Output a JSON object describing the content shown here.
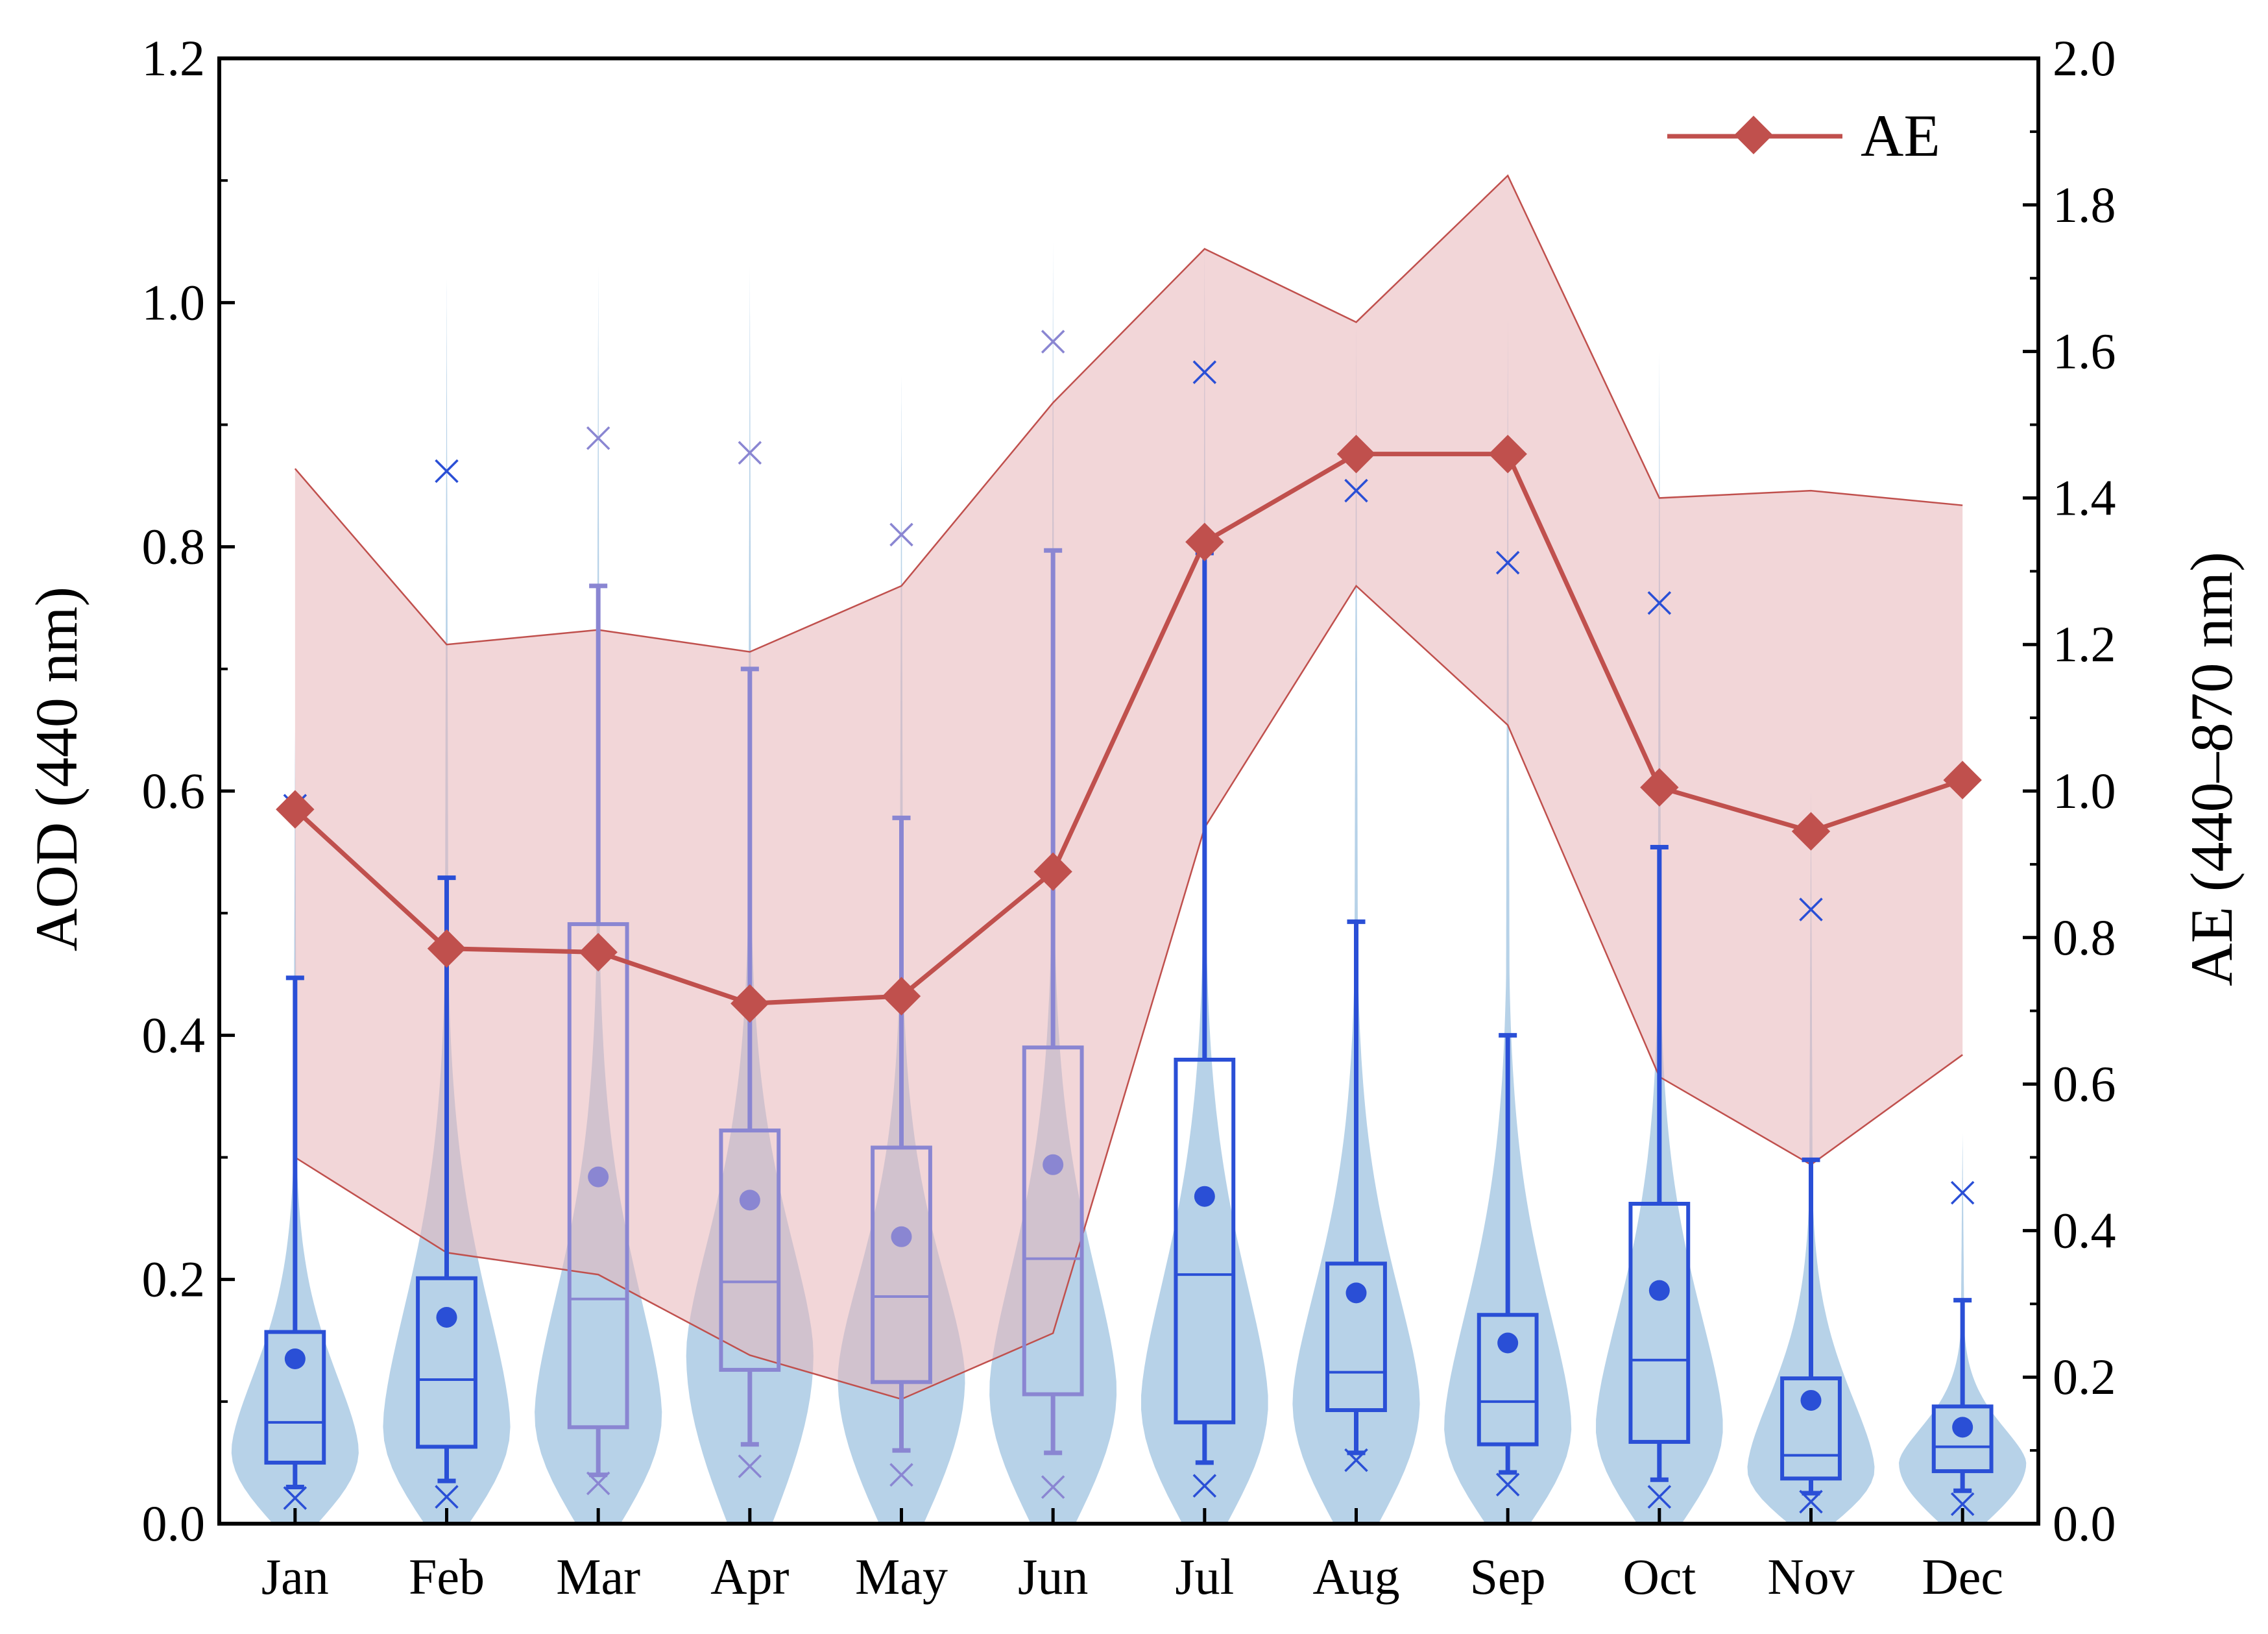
{
  "chart_data": {
    "type": "box-violin with line and band",
    "categories": [
      "Jan",
      "Feb",
      "Mar",
      "Apr",
      "May",
      "Jun",
      "Jul",
      "Aug",
      "Sep",
      "Oct",
      "Nov",
      "Dec"
    ],
    "left_axis": {
      "label": "AOD (440 nm)",
      "range": [
        0.0,
        1.2
      ],
      "ticks": [
        "0.0",
        "0.2",
        "0.4",
        "0.6",
        "0.8",
        "1.0",
        "1.2"
      ]
    },
    "right_axis": {
      "label": "AE (440–870 nm)",
      "range": [
        0.0,
        2.0
      ],
      "ticks": [
        "0.0",
        "0.2",
        "0.4",
        "0.6",
        "0.8",
        "1.0",
        "1.2",
        "1.4",
        "1.6",
        "1.8",
        "2.0"
      ]
    },
    "aod_series": [
      {
        "month": "Jan",
        "q1": 0.05,
        "median": 0.083,
        "q3": 0.157,
        "mean": 0.135,
        "whisker_low": 0.03,
        "whisker_high": 0.447,
        "p1": 0.021,
        "p99": 0.588,
        "violin_max": 0.65,
        "violin_peak": 0.06
      },
      {
        "month": "Feb",
        "q1": 0.063,
        "median": 0.118,
        "q3": 0.201,
        "mean": 0.169,
        "whisker_low": 0.035,
        "whisker_high": 0.529,
        "p1": 0.022,
        "p99": 0.862,
        "violin_max": 1.02,
        "violin_peak": 0.08
      },
      {
        "month": "Mar",
        "q1": 0.079,
        "median": 0.184,
        "q3": 0.491,
        "mean": 0.284,
        "whisker_low": 0.04,
        "whisker_high": 0.768,
        "p1": 0.033,
        "p99": 0.889,
        "violin_max": 1.03,
        "violin_peak": 0.09
      },
      {
        "month": "Apr",
        "q1": 0.126,
        "median": 0.198,
        "q3": 0.322,
        "mean": 0.265,
        "whisker_low": 0.065,
        "whisker_high": 0.7,
        "p1": 0.047,
        "p99": 0.877,
        "violin_max": 1.03,
        "violin_peak": 0.14
      },
      {
        "month": "May",
        "q1": 0.116,
        "median": 0.186,
        "q3": 0.308,
        "mean": 0.235,
        "whisker_low": 0.06,
        "whisker_high": 0.578,
        "p1": 0.04,
        "p99": 0.81,
        "violin_max": 0.94,
        "violin_peak": 0.12
      },
      {
        "month": "Jun",
        "q1": 0.106,
        "median": 0.217,
        "q3": 0.39,
        "mean": 0.294,
        "whisker_low": 0.058,
        "whisker_high": 0.797,
        "p1": 0.03,
        "p99": 0.968,
        "violin_max": 1.05,
        "violin_peak": 0.11
      },
      {
        "month": "Jul",
        "q1": 0.083,
        "median": 0.204,
        "q3": 0.38,
        "mean": 0.268,
        "whisker_low": 0.05,
        "whisker_high": 0.795,
        "p1": 0.031,
        "p99": 0.943,
        "violin_max": 1.05,
        "violin_peak": 0.1
      },
      {
        "month": "Aug",
        "q1": 0.093,
        "median": 0.124,
        "q3": 0.213,
        "mean": 0.189,
        "whisker_low": 0.058,
        "whisker_high": 0.493,
        "p1": 0.052,
        "p99": 0.846,
        "violin_max": 0.98,
        "violin_peak": 0.1
      },
      {
        "month": "Sep",
        "q1": 0.065,
        "median": 0.1,
        "q3": 0.171,
        "mean": 0.148,
        "whisker_low": 0.042,
        "whisker_high": 0.4,
        "p1": 0.032,
        "p99": 0.787,
        "violin_max": 0.99,
        "violin_peak": 0.08
      },
      {
        "month": "Oct",
        "q1": 0.067,
        "median": 0.134,
        "q3": 0.262,
        "mean": 0.191,
        "whisker_low": 0.036,
        "whisker_high": 0.554,
        "p1": 0.022,
        "p99": 0.754,
        "violin_max": 0.96,
        "violin_peak": 0.08
      },
      {
        "month": "Nov",
        "q1": 0.037,
        "median": 0.056,
        "q3": 0.119,
        "mean": 0.101,
        "whisker_low": 0.025,
        "whisker_high": 0.298,
        "p1": 0.018,
        "p99": 0.503,
        "violin_max": 0.6,
        "violin_peak": 0.045
      },
      {
        "month": "Dec",
        "q1": 0.043,
        "median": 0.063,
        "q3": 0.096,
        "mean": 0.079,
        "whisker_low": 0.027,
        "whisker_high": 0.183,
        "p1": 0.016,
        "p99": 0.271,
        "violin_max": 0.32,
        "violin_peak": 0.05
      }
    ],
    "ae_series": {
      "name": "AE",
      "mean": [
        0.975,
        0.785,
        0.78,
        0.71,
        0.72,
        0.89,
        1.34,
        1.46,
        1.46,
        1.005,
        0.945,
        1.015
      ],
      "upper": [
        1.44,
        1.2,
        1.22,
        1.19,
        1.28,
        1.53,
        1.74,
        1.64,
        1.84,
        1.4,
        1.41,
        1.39
      ],
      "lower": [
        0.5,
        0.37,
        0.34,
        0.23,
        0.17,
        0.26,
        0.95,
        1.28,
        1.09,
        0.61,
        0.49,
        0.64
      ]
    },
    "legend": {
      "entry": "AE",
      "position": "top-right"
    },
    "colors": {
      "box_strong": "#2a4fd6",
      "box_faded": "#8a86d2",
      "violin": "#b7d2e8",
      "ae_line": "#c0504d",
      "ae_band": "#e8b4b8",
      "axis": "#000000"
    }
  }
}
